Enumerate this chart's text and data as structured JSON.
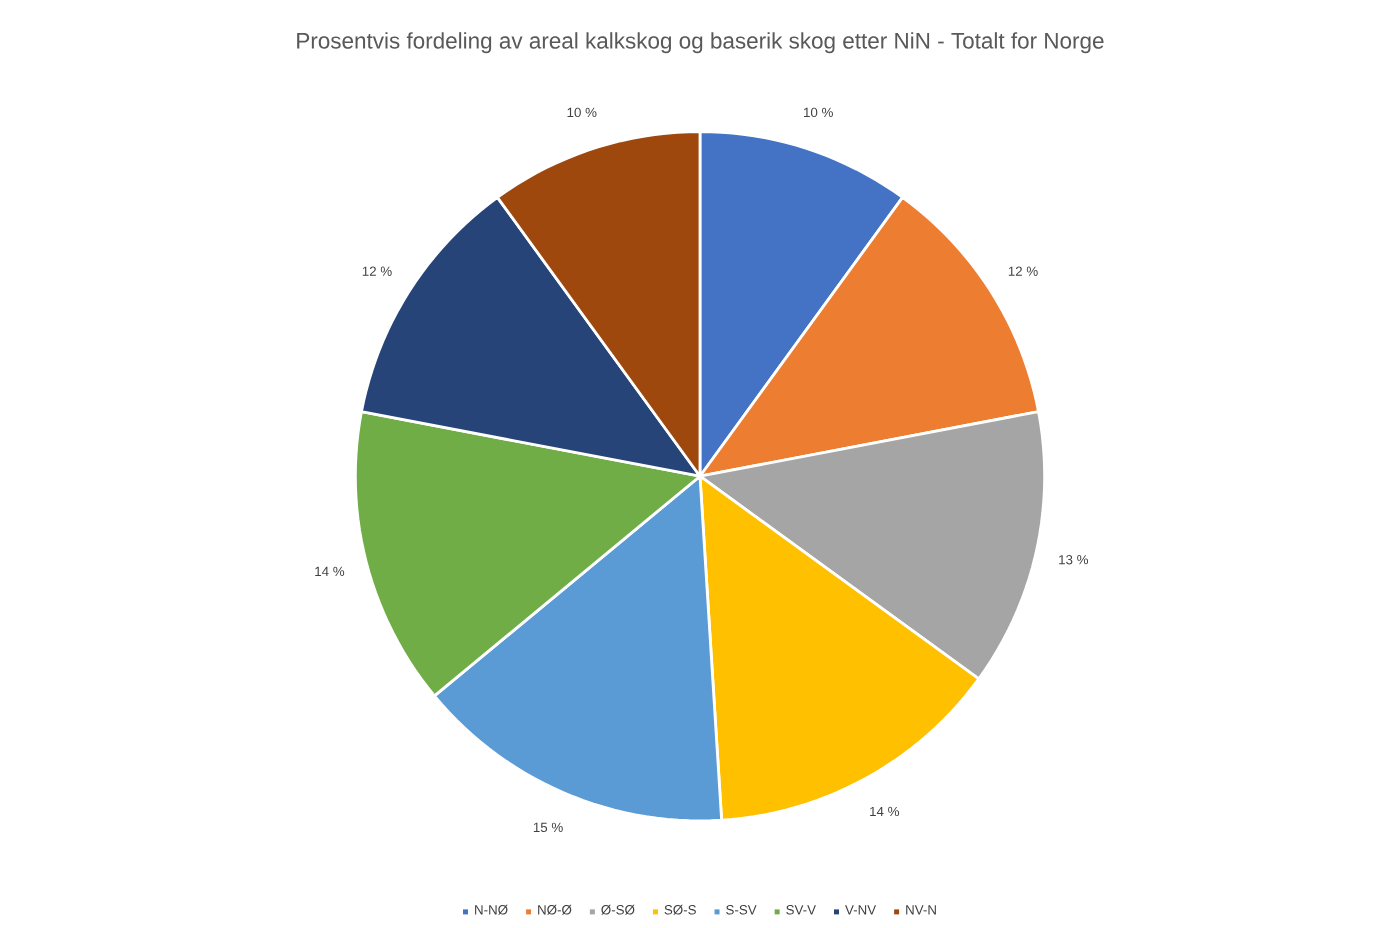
{
  "chart_data": {
    "type": "pie",
    "title": "Prosentvis fordeling av areal kalkskog og baserik skog etter NiN - Totalt for Norge",
    "categories": [
      "N-NØ",
      "NØ-Ø",
      "Ø-SØ",
      "SØ-S",
      "S-SV",
      "SV-V",
      "V-NV",
      "NV-N"
    ],
    "values": [
      10,
      12,
      13,
      14,
      15,
      14,
      12,
      10
    ],
    "colors": [
      "#4472c4",
      "#ed7d31",
      "#a5a5a5",
      "#ffc000",
      "#5b9bd5",
      "#70ad47",
      "#264478",
      "#9e480e"
    ],
    "value_labels": [
      "10 %",
      "12 %",
      "13 %",
      "14 %",
      "15 %",
      "14 %",
      "12 %",
      "10 %"
    ],
    "legend": "bottom"
  }
}
